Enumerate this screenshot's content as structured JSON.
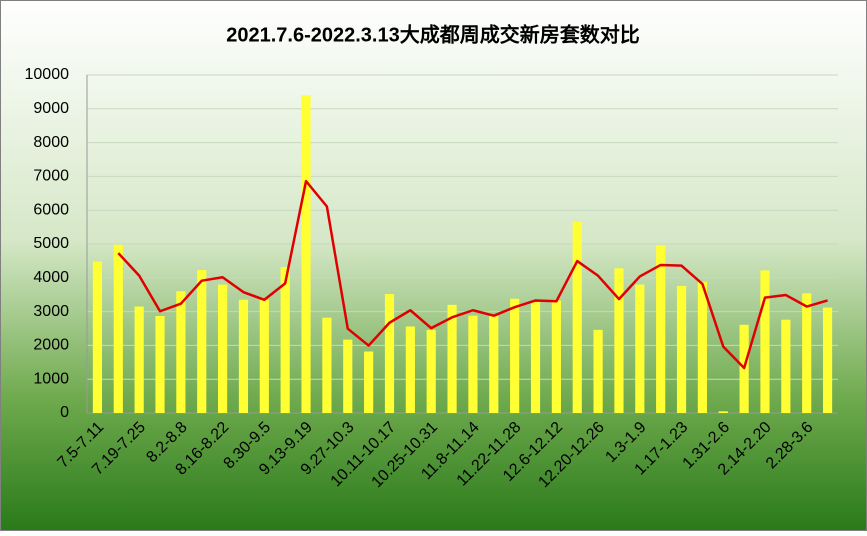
{
  "chart_data": {
    "type": "bar-line",
    "title": "2021.7.6-2022.3.13大成都周成交新房套数对比",
    "categories": [
      "7.5-7.11",
      null,
      "7.19-7.25",
      null,
      "8.2-8.8",
      null,
      "8.16-8.22",
      null,
      "8.30-9.5",
      null,
      "9.13-9.19",
      null,
      "9.27-10.3",
      null,
      "10.11-10.17",
      null,
      "10.25-10.31",
      null,
      "11.8-11.14",
      null,
      "11.22-11.28",
      null,
      "12.6-12.12",
      null,
      "12.20-12.26",
      null,
      "1.3-1.9",
      null,
      "1.17-1.23",
      null,
      "1.31-2.6",
      null,
      "2.14-2.20",
      null,
      "2.28-3.6",
      null
    ],
    "series": [
      {
        "type": "bar",
        "color": "#ffff33",
        "values": [
          4480,
          4980,
          3150,
          2870,
          3600,
          4230,
          3800,
          3350,
          3350,
          4320,
          9400,
          2820,
          2170,
          1820,
          3520,
          2560,
          2460,
          3200,
          2880,
          2880,
          3380,
          3280,
          3330,
          5660,
          2460,
          4280,
          3800,
          4960,
          3760,
          3880,
          50,
          2610,
          4220,
          2760,
          3540,
          3120
        ]
      },
      {
        "type": "line",
        "color": "#e00000",
        "values": [
          null,
          4730,
          4065,
          3010,
          3235,
          3915,
          4015,
          3575,
          3350,
          3835,
          6860,
          6110,
          2495,
          1995,
          2670,
          3040,
          2510,
          2830,
          3040,
          2880,
          3130,
          3330,
          3305,
          4495,
          4060,
          3370,
          4040,
          4380,
          4360,
          3820,
          1965,
          1330,
          3415,
          3490,
          3150,
          3330
        ]
      }
    ],
    "ylim": [
      0,
      10000
    ],
    "yticks": [
      0,
      1000,
      2000,
      3000,
      4000,
      5000,
      6000,
      7000,
      8000,
      9000,
      10000
    ],
    "grid": true
  }
}
